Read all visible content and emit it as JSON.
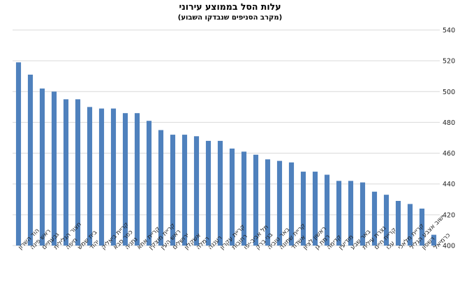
{
  "chart_data": {
    "type": "bar",
    "title": "עלות הסל בממוצע עירוני",
    "subtitle": "(מקרב הסניפים שנבדקו השבוע)",
    "xlabel": "",
    "ylabel": "",
    "ylim": [
      400,
      540
    ],
    "yticks": [
      400,
      420,
      440,
      460,
      480,
      500,
      520,
      540
    ],
    "y_axis_side": "right",
    "grid": true,
    "legend": "none",
    "bar_color": "#4f81bd",
    "categories": [
      "הוד השרון",
      "ראש פינה",
      "גבעתיים",
      "חצור הגלילית",
      "חיפה",
      "בית שמש",
      "יהוד",
      "קריית ביאליק",
      "כפר סבא",
      "נתניה",
      "קריית אתא",
      "קריית מוצקין",
      "ראש העין",
      "ירושלים",
      "אשקלון",
      "רמלה",
      "רעננה",
      "קריית עקרון",
      "רחובות",
      "תל אביב-יפו",
      "בני ברק",
      "באר טוביה",
      "קריית שמונה",
      "אשדוד",
      "ראשון לציון",
      "רמת גן",
      "קדימה",
      "מודיעין",
      "באר שבע",
      "נצרת עילית",
      "קריית חיים",
      "עכו",
      "קריית מלאכי",
      "ישוב אצבע הגליל",
      "רשפון",
      "כרמיאל"
    ],
    "values": [
      519,
      511,
      502,
      500,
      495,
      495,
      490,
      489,
      489,
      486,
      486,
      481,
      475,
      472,
      472,
      471,
      468,
      468,
      463,
      461,
      459,
      456,
      455,
      454,
      448,
      448,
      446,
      442,
      442,
      441,
      435,
      433,
      429,
      427,
      424,
      407
    ]
  }
}
